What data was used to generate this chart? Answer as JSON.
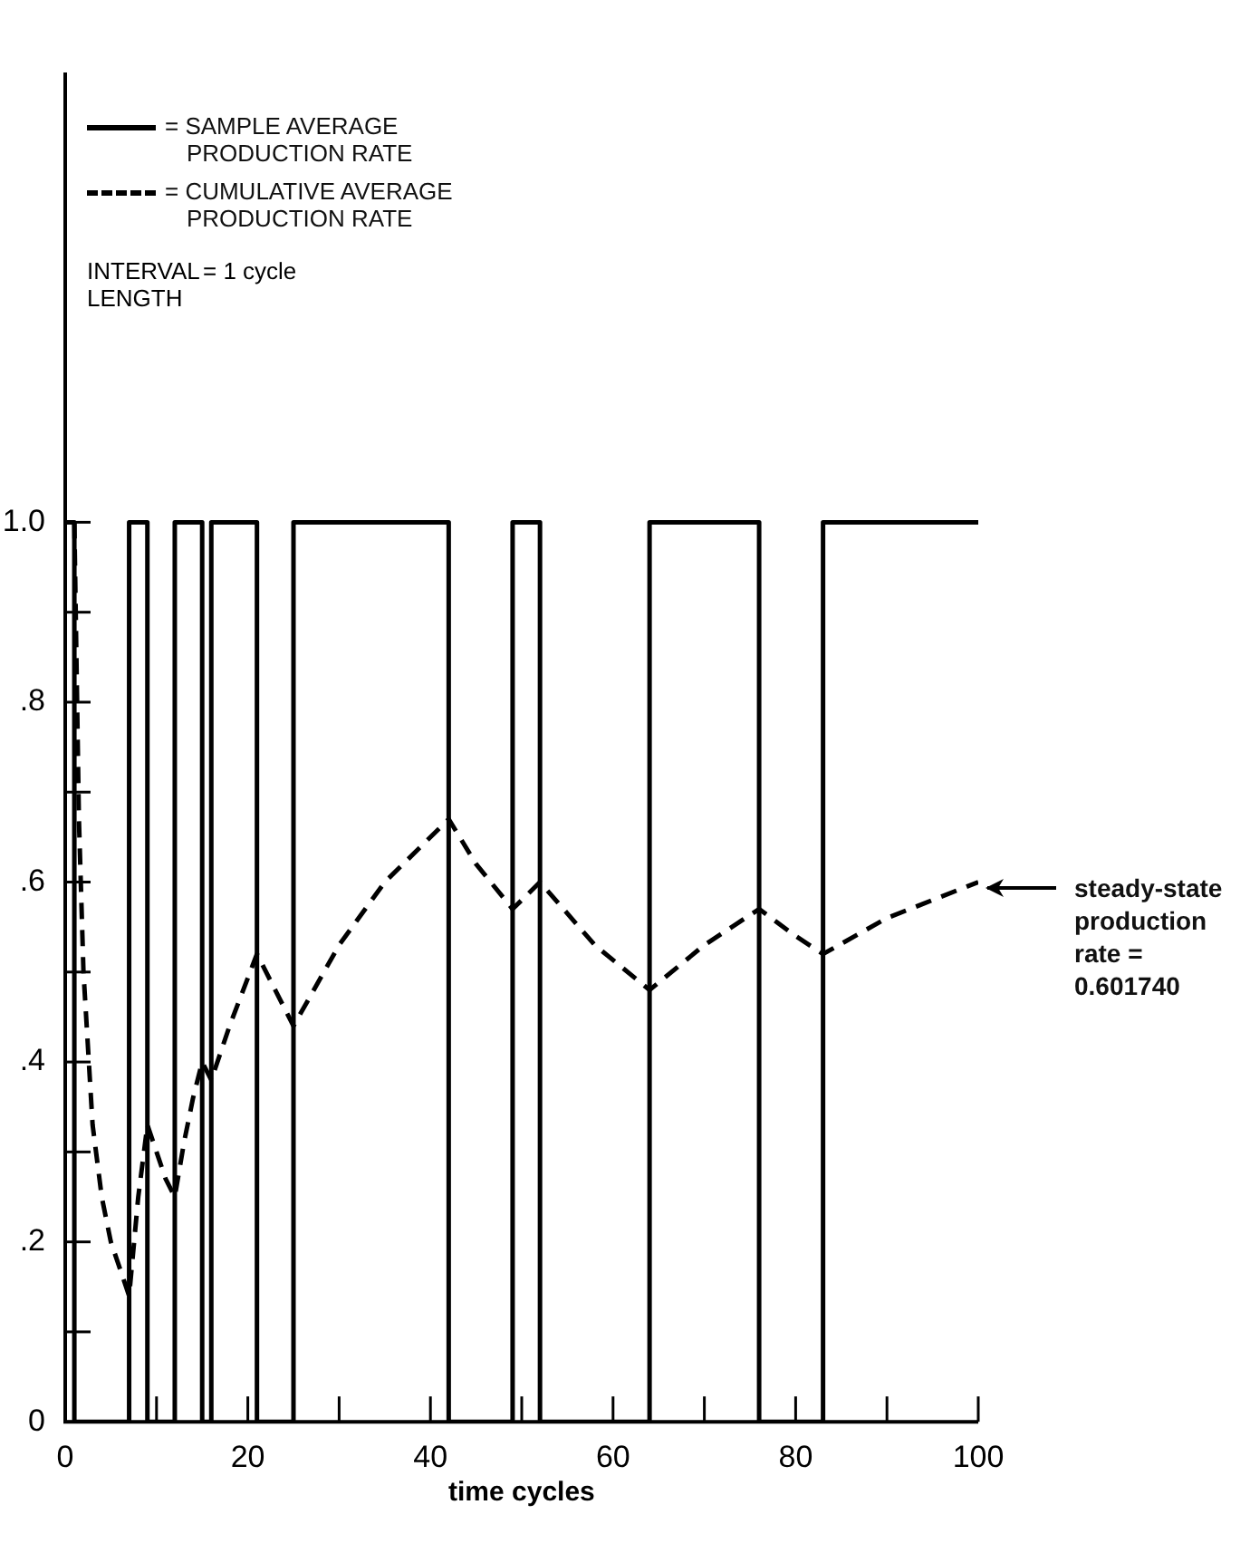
{
  "chart_data": {
    "type": "step",
    "xlabel": "time cycles",
    "xlim": [
      0,
      100
    ],
    "xticks": [
      0,
      {
        "value": 10,
        "label": null
      },
      20,
      {
        "value": 30,
        "label": null
      },
      40,
      {
        "value": 50,
        "label": null
      },
      60,
      {
        "value": 70,
        "label": null
      },
      80,
      {
        "value": 90,
        "label": null
      },
      100
    ],
    "ylim": [
      0,
      1.5
    ],
    "yticks": [
      0,
      {
        "value": 0.1,
        "label": null
      },
      {
        "value": 0.2,
        "label": ".2"
      },
      {
        "value": 0.3,
        "label": null
      },
      {
        "value": 0.4,
        "label": ".4"
      },
      {
        "value": 0.5,
        "label": null
      },
      {
        "value": 0.6,
        "label": ".6"
      },
      {
        "value": 0.7,
        "label": null
      },
      {
        "value": 0.8,
        "label": ".8"
      },
      {
        "value": 0.9,
        "label": null
      },
      {
        "value": 1.0,
        "label": "1.0"
      }
    ],
    "grid": false,
    "legend": "top left",
    "marker": "none",
    "series": [
      {
        "name": "= SAMPLE AVERAGE PRODUCTION RATE",
        "line_style": "solid",
        "color": "#000000",
        "x": [
          0,
          1,
          7,
          9,
          12,
          15,
          16,
          21,
          25,
          42,
          49,
          52,
          64,
          76,
          83,
          100
        ],
        "values": [
          1,
          0,
          1,
          0,
          1,
          0,
          1,
          0,
          1,
          0,
          1,
          0,
          1,
          0,
          1,
          1
        ]
      },
      {
        "name": "= CUMULATIVE AVERAGE PRODUCTION RATE",
        "type": "line",
        "line_style": "dashed",
        "color": "#000000",
        "x": [
          1,
          1.5,
          2,
          3,
          4,
          5,
          6,
          7,
          8,
          9,
          10,
          11,
          12,
          13,
          14,
          15,
          16,
          18,
          21,
          23,
          25,
          30,
          35,
          42,
          45,
          49,
          52,
          58,
          64,
          70,
          76,
          80,
          83,
          90,
          100
        ],
        "values": [
          1.0,
          0.67,
          0.5,
          0.33,
          0.25,
          0.2,
          0.17,
          0.14,
          0.25,
          0.33,
          0.3,
          0.27,
          0.25,
          0.31,
          0.36,
          0.4,
          0.38,
          0.44,
          0.52,
          0.48,
          0.44,
          0.53,
          0.6,
          0.67,
          0.62,
          0.57,
          0.6,
          0.53,
          0.48,
          0.53,
          0.57,
          0.54,
          0.52,
          0.56,
          0.6
        ]
      }
    ],
    "annotations": [
      "INTERVAL LENGTH = 1 cycle",
      "steady-state production rate = 0.601740"
    ]
  }
}
